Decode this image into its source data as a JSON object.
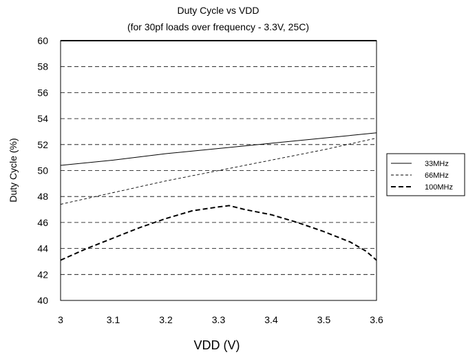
{
  "chart_data": {
    "type": "line",
    "title": "Duty Cycle vs VDD",
    "subtitle": "(for 30pf loads over frequency - 3.3V, 25C)",
    "xlabel": "VDD (V)",
    "ylabel": "Duty Cycle (%)",
    "xlim": [
      3.0,
      3.6
    ],
    "ylim": [
      40,
      60
    ],
    "x_ticks": [
      "3",
      "3.1",
      "3.2",
      "3.3",
      "3.4",
      "3.5",
      "3.6"
    ],
    "y_ticks": [
      "40",
      "42",
      "44",
      "46",
      "48",
      "50",
      "52",
      "54",
      "56",
      "58",
      "60"
    ],
    "grid": "horizontal dashed",
    "legend_position": "right",
    "series": [
      {
        "name": "33MHz",
        "style": "solid-thin",
        "x": [
          3.0,
          3.1,
          3.2,
          3.3,
          3.4,
          3.5,
          3.6
        ],
        "y": [
          50.4,
          50.8,
          51.3,
          51.7,
          52.1,
          52.5,
          52.9
        ]
      },
      {
        "name": "66MHz",
        "style": "dashed-thin",
        "x": [
          3.0,
          3.1,
          3.2,
          3.3,
          3.4,
          3.5,
          3.6
        ],
        "y": [
          47.4,
          48.3,
          49.2,
          50.0,
          50.8,
          51.6,
          52.5
        ]
      },
      {
        "name": "100MHz",
        "style": "dashed-thick",
        "x": [
          3.0,
          3.05,
          3.1,
          3.15,
          3.2,
          3.25,
          3.3,
          3.32,
          3.35,
          3.4,
          3.45,
          3.5,
          3.55,
          3.58,
          3.6
        ],
        "y": [
          43.1,
          44.0,
          44.8,
          45.6,
          46.3,
          46.9,
          47.2,
          47.3,
          47.0,
          46.6,
          46.0,
          45.3,
          44.5,
          43.8,
          43.1
        ]
      }
    ],
    "colors": {
      "line": "#000000",
      "grid": "#000000",
      "background": "#ffffff"
    }
  }
}
